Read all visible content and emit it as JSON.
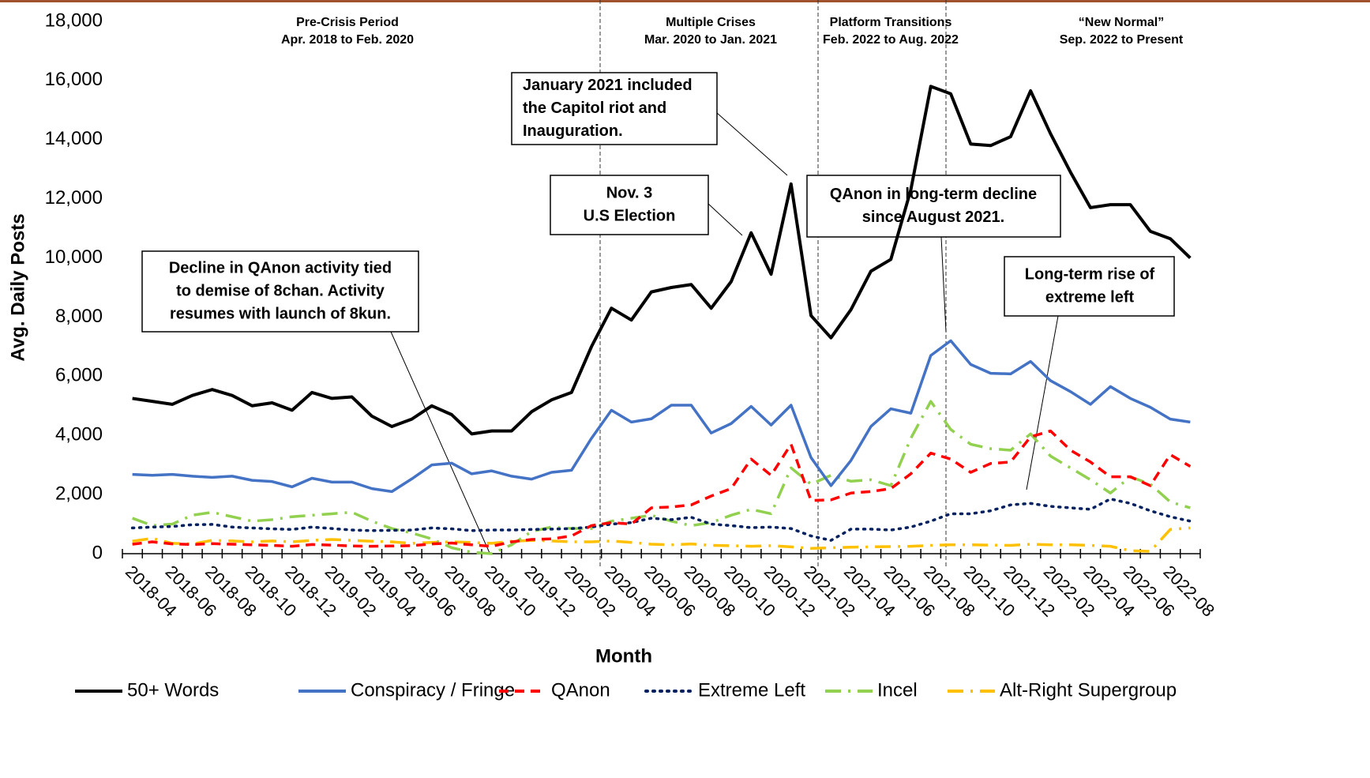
{
  "chart_data": {
    "type": "line",
    "x_label": "Month",
    "y_label": "Avg. Daily Posts",
    "categories": [
      "2018-04",
      null,
      "2018-06",
      null,
      "2018-08",
      null,
      "2018-10",
      null,
      "2018-12",
      null,
      "2019-02",
      null,
      "2019-04",
      null,
      "2019-06",
      null,
      "2019-08",
      null,
      "2019-10",
      null,
      "2019-12",
      null,
      "2020-02",
      null,
      "2020-04",
      null,
      "2020-06",
      null,
      "2020-08",
      null,
      "2020-10",
      null,
      "2020-12",
      null,
      "2021-02",
      null,
      "2021-04",
      null,
      "2021-06",
      null,
      "2021-08",
      null,
      "2021-10",
      null,
      "2021-12",
      null,
      "2022-02",
      null,
      "2022-04",
      null,
      "2022-06",
      null,
      "2022-08",
      null
    ],
    "ylim": [
      0,
      18000
    ],
    "yticks": [
      {
        "value": 0,
        "label": "0"
      },
      {
        "value": 2000,
        "label": "2,000"
      },
      {
        "value": 4000,
        "label": "4,000"
      },
      {
        "value": 6000,
        "label": "6,000"
      },
      {
        "value": 8000,
        "label": "8,000"
      },
      {
        "value": 10000,
        "label": "10,000"
      },
      {
        "value": 12000,
        "label": "12,000"
      },
      {
        "value": 14000,
        "label": "14,000"
      },
      {
        "value": 16000,
        "label": "16,000"
      },
      {
        "value": 18000,
        "label": "18,000"
      }
    ],
    "grid": false,
    "legend": "bottom",
    "series": [
      {
        "name": "50+ Words",
        "color": "#000000",
        "style": "solid",
        "values": [
          5250,
          5150,
          5050,
          5350,
          5550,
          5350,
          5000,
          5100,
          4850,
          5450,
          5250,
          5300,
          4650,
          4300,
          4550,
          5000,
          4700,
          4050,
          4150,
          4150,
          4800,
          5200,
          5450,
          7000,
          8300,
          7900,
          8850,
          9000,
          9100,
          8300,
          9200,
          10850,
          9450,
          12500,
          8050,
          7300,
          8250,
          9550,
          9950,
          12300,
          15800,
          15550,
          13850,
          13800,
          14100,
          15650,
          14200,
          12900,
          11700,
          11800,
          11800,
          10900,
          10650,
          10000
        ]
      },
      {
        "name": "Conspiracy / Fringe",
        "color": "#4472c4",
        "style": "solid",
        "values": [
          2680,
          2650,
          2680,
          2620,
          2580,
          2620,
          2480,
          2440,
          2260,
          2550,
          2420,
          2420,
          2200,
          2100,
          2530,
          3000,
          3060,
          2700,
          2800,
          2620,
          2520,
          2750,
          2820,
          3900,
          4850,
          4450,
          4560,
          5020,
          5020,
          4080,
          4400,
          4980,
          4350,
          5020,
          3250,
          2300,
          3150,
          4300,
          4900,
          4750,
          6700,
          7200,
          6400,
          6100,
          6080,
          6500,
          5850,
          5480,
          5050,
          5650,
          5250,
          4950,
          4550,
          4450
        ]
      },
      {
        "name": "QAnon",
        "color": "#ff0000",
        "style": "dashed",
        "values": [
          320,
          400,
          330,
          310,
          340,
          320,
          300,
          280,
          250,
          310,
          290,
          260,
          250,
          260,
          270,
          330,
          360,
          300,
          250,
          400,
          480,
          500,
          600,
          950,
          1050,
          1000,
          1550,
          1580,
          1650,
          1950,
          2200,
          3200,
          2650,
          3700,
          1800,
          1820,
          2050,
          2100,
          2200,
          2700,
          3400,
          3200,
          2750,
          3050,
          3100,
          3950,
          4150,
          3500,
          3100,
          2600,
          2600,
          2300,
          3350,
          2950
        ]
      },
      {
        "name": "Extreme Left",
        "color": "#002060",
        "style": "dotted",
        "values": [
          870,
          900,
          920,
          980,
          990,
          900,
          870,
          840,
          820,
          900,
          850,
          800,
          780,
          790,
          800,
          870,
          840,
          780,
          800,
          800,
          820,
          830,
          850,
          900,
          1000,
          1050,
          1200,
          1150,
          1230,
          1000,
          950,
          880,
          900,
          850,
          600,
          450,
          830,
          830,
          800,
          900,
          1100,
          1350,
          1350,
          1450,
          1650,
          1700,
          1600,
          1550,
          1500,
          1850,
          1700,
          1450,
          1250,
          1100
        ]
      },
      {
        "name": "Incel",
        "color": "#92d050",
        "style": "dash-dot",
        "values": [
          1200,
          950,
          1000,
          1300,
          1400,
          1250,
          1100,
          1150,
          1250,
          1300,
          1350,
          1400,
          1100,
          850,
          700,
          500,
          200,
          50,
          0,
          300,
          750,
          900,
          850,
          850,
          1100,
          1200,
          1300,
          1100,
          950,
          1050,
          1300,
          1500,
          1350,
          2900,
          2350,
          2650,
          2450,
          2500,
          2300,
          3900,
          5150,
          4200,
          3700,
          3550,
          3500,
          4050,
          3300,
          2900,
          2500,
          2050,
          2600,
          2350,
          1750,
          1550
        ]
      },
      {
        "name": "Alt-Right Supergroup",
        "color": "#ffc000",
        "style": "dash-dot",
        "values": [
          420,
          520,
          350,
          330,
          450,
          430,
          400,
          430,
          400,
          450,
          480,
          450,
          420,
          400,
          350,
          380,
          400,
          380,
          350,
          420,
          450,
          430,
          400,
          400,
          430,
          380,
          320,
          300,
          330,
          280,
          270,
          250,
          270,
          230,
          180,
          200,
          220,
          230,
          240,
          250,
          280,
          300,
          300,
          290,
          280,
          320,
          300,
          300,
          280,
          250,
          100,
          80,
          820,
          870
        ]
      }
    ],
    "periods": [
      {
        "name": "Pre-Crisis Period",
        "range": "Apr. 2018 to Feb. 2020"
      },
      {
        "name": "Multiple Crises",
        "range": "Mar. 2020 to Jan. 2021"
      },
      {
        "name": "Platform Transitions",
        "range": "Feb. 2022 to Aug. 2022"
      },
      {
        "name": "“New Normal”",
        "range": "Sep. 2022 to Present"
      }
    ],
    "annotations": [
      {
        "lines": [
          "Decline in QAnon activity tied",
          "to demise of 8chan. Activity",
          "resumes with launch of 8kun."
        ]
      },
      {
        "lines": [
          "Nov. 3",
          "U.S Election"
        ]
      },
      {
        "lines": [
          "January 2021 included",
          "the Capitol riot and",
          "Inauguration."
        ]
      },
      {
        "lines": [
          "QAnon in long-term decline",
          "since August 2021."
        ]
      },
      {
        "lines": [
          "Long-term rise of",
          "extreme left"
        ]
      }
    ]
  }
}
